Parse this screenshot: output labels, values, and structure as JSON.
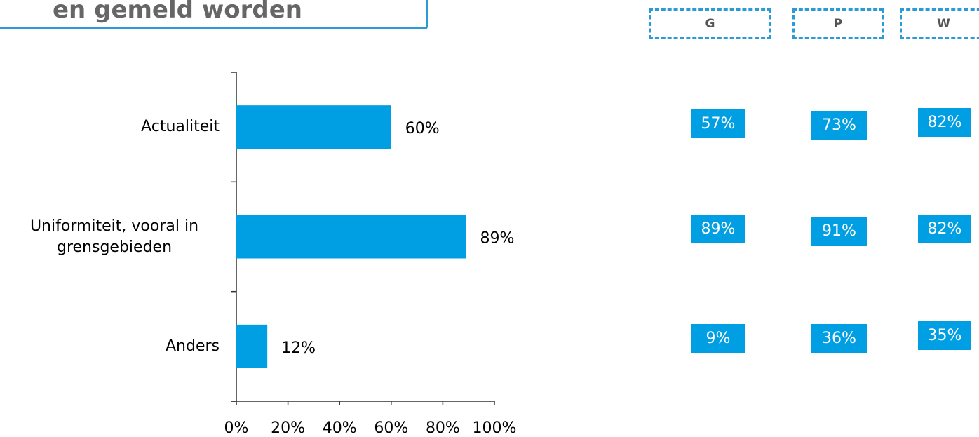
{
  "header": {
    "title": "en gemeld worden"
  },
  "chart_data": {
    "type": "bar",
    "orientation": "horizontal",
    "categories": [
      "Actualiteit",
      "Uniformiteit, vooral in grensgebieden",
      "Anders"
    ],
    "values": [
      60,
      89,
      12
    ],
    "value_labels": [
      "60%",
      "89%",
      "12%"
    ],
    "color": "#009fe3",
    "xlim": [
      0,
      100
    ],
    "xticks": [
      {
        "value": 0,
        "label": "0%"
      },
      {
        "value": 20,
        "label": "20%"
      },
      {
        "value": 40,
        "label": "40%"
      },
      {
        "value": 60,
        "label": "60%"
      },
      {
        "value": 80,
        "label": "80%"
      },
      {
        "value": 100,
        "label": "100%"
      }
    ],
    "grid": false
  },
  "table": {
    "headers": [
      "G",
      "P",
      "W"
    ],
    "rows": [
      [
        "57%",
        "73%",
        "82%"
      ],
      [
        "89%",
        "91%",
        "82%"
      ],
      [
        "9%",
        "36%",
        "35%"
      ]
    ]
  }
}
